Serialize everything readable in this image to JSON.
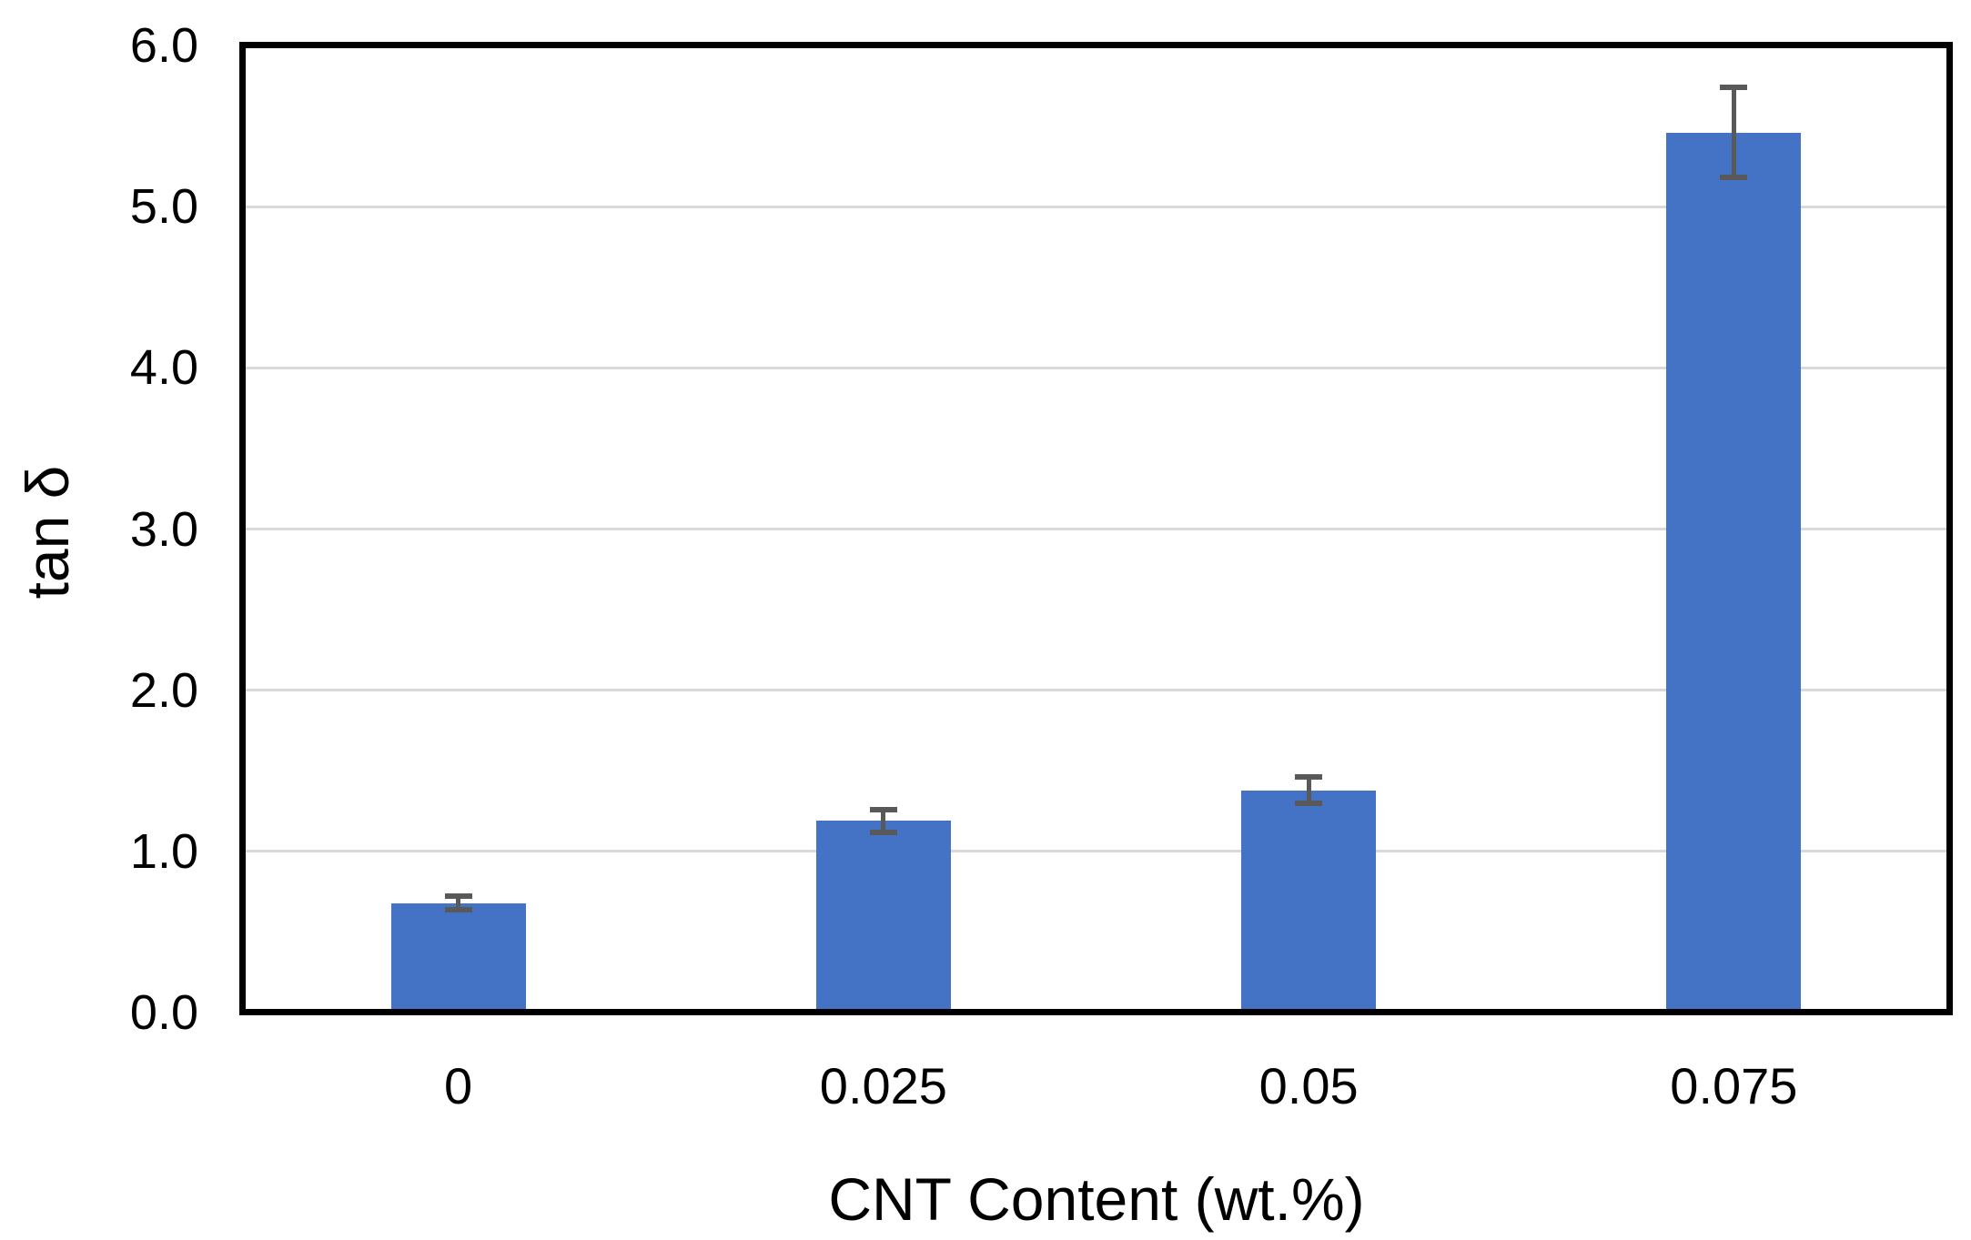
{
  "chart_data": {
    "type": "bar",
    "title": "",
    "xlabel": "CNT Content (wt.%)",
    "ylabel": "tan δ",
    "categories": [
      "0",
      "0.025",
      "0.05",
      "0.075"
    ],
    "series": [
      {
        "name": "tan delta",
        "values": [
          0.68,
          1.19,
          1.38,
          5.46
        ],
        "error_plus": [
          0.04,
          0.07,
          0.08,
          0.28
        ],
        "error_minus": [
          0.04,
          0.07,
          0.08,
          0.28
        ]
      }
    ],
    "ylim": [
      0.0,
      6.0
    ],
    "ytick_step": 1.0,
    "ytick_labels": [
      "0.0",
      "1.0",
      "2.0",
      "3.0",
      "4.0",
      "5.0",
      "6.0"
    ],
    "grid": true,
    "legend": false,
    "colors": {
      "bar_fill": "#4472C4",
      "error_bar": "#595959",
      "gridline": "#D9D9D9",
      "plot_border": "#000000",
      "text": "#000000",
      "background": "#FFFFFF"
    }
  }
}
